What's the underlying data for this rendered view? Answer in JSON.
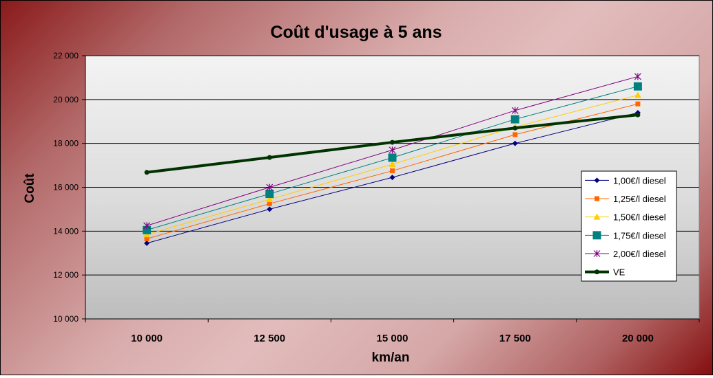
{
  "chart_data": {
    "type": "line",
    "title": "Coût d'usage à 5 ans",
    "xlabel": "km/an",
    "ylabel": "Coût",
    "categories": [
      "10 000",
      "12 500",
      "15 000",
      "17 500",
      "20 000"
    ],
    "y_ticks": [
      "10 000",
      "12 000",
      "14 000",
      "16 000",
      "18 000",
      "20 000",
      "22 000"
    ],
    "ylim": [
      10000,
      22000
    ],
    "grid": true,
    "legend_position": "right",
    "series": [
      {
        "name": "1,00€/l diesel",
        "values": [
          13450,
          15000,
          16450,
          18000,
          19400
        ],
        "color": "#000080",
        "marker": "diamond",
        "width": 1
      },
      {
        "name": "1,25€/l diesel",
        "values": [
          13650,
          15250,
          16750,
          18400,
          19800
        ],
        "color": "#ff6600",
        "marker": "square",
        "width": 1
      },
      {
        "name": "1,50€/l diesel",
        "values": [
          13850,
          15450,
          17050,
          18750,
          20200
        ],
        "color": "#ffcc00",
        "marker": "triangle",
        "width": 1
      },
      {
        "name": "1,75€/l diesel",
        "values": [
          14050,
          15700,
          17350,
          19100,
          20600
        ],
        "color": "#008080",
        "marker": "bigsquare",
        "width": 1
      },
      {
        "name": "2,00€/l diesel",
        "values": [
          14250,
          16000,
          17700,
          19500,
          21050
        ],
        "color": "#800080",
        "marker": "star",
        "width": 1
      },
      {
        "name": "VE",
        "values": [
          16680,
          17360,
          18050,
          18700,
          19300
        ],
        "color": "#003300",
        "marker": "circle",
        "width": 4
      }
    ]
  }
}
